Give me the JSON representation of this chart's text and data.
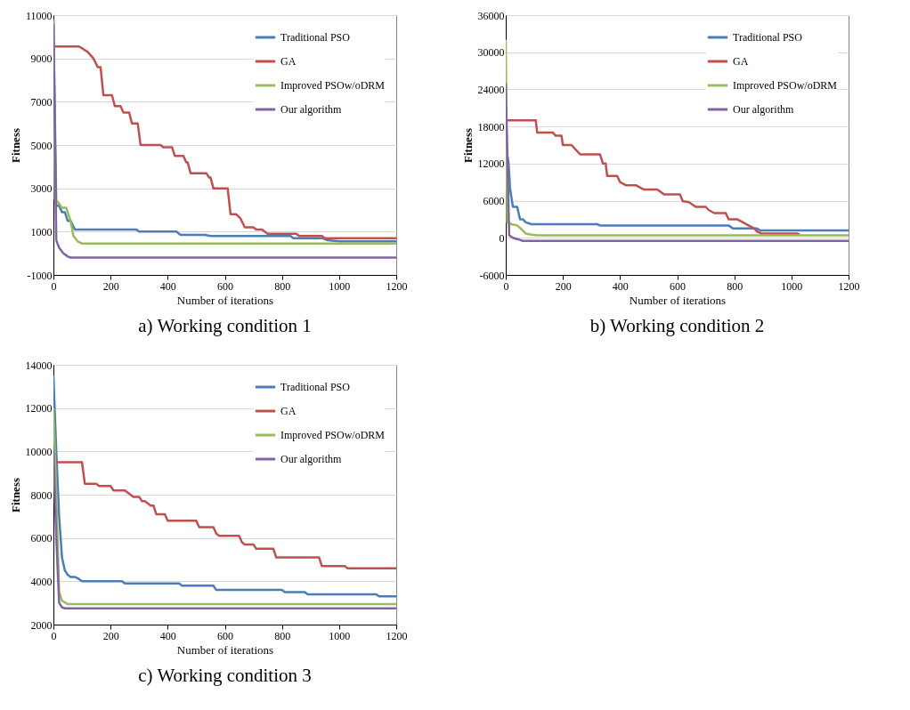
{
  "chart_data": [
    {
      "type": "line",
      "title": "a) Working condition 1",
      "xlabel": "Number of iterations",
      "ylabel": "Fitness",
      "xlim": [
        0,
        1200
      ],
      "xticks": [
        0,
        200,
        400,
        600,
        800,
        1000,
        1200
      ],
      "ylim": [
        -1000,
        11000
      ],
      "yticks": [
        -1000,
        1000,
        3000,
        5000,
        7000,
        9000,
        11000
      ],
      "grid": "y",
      "legend": "top right",
      "line_style": "solid",
      "series": [
        {
          "name": "Traditional PSO",
          "color": "#4a7ebb",
          "x": [
            0,
            10,
            20,
            30,
            40,
            50,
            60,
            75,
            290,
            300,
            430,
            445,
            530,
            550,
            830,
            840,
            940,
            960,
            1000,
            1200
          ],
          "values": [
            10800,
            2200,
            2200,
            1900,
            1900,
            1500,
            1500,
            1100,
            1100,
            1000,
            1000,
            850,
            850,
            800,
            800,
            700,
            700,
            600,
            550,
            550
          ]
        },
        {
          "name": "GA",
          "color": "#c0504d",
          "x": [
            0,
            90,
            120,
            140,
            155,
            165,
            175,
            205,
            215,
            235,
            245,
            265,
            275,
            295,
            305,
            375,
            385,
            415,
            425,
            455,
            465,
            470,
            480,
            535,
            545,
            550,
            560,
            610,
            620,
            640,
            655,
            670,
            700,
            710,
            730,
            750,
            850,
            860,
            940,
            950,
            1200
          ],
          "values": [
            9550,
            9550,
            9300,
            9000,
            8600,
            8600,
            7300,
            7300,
            6800,
            6800,
            6500,
            6500,
            6000,
            6000,
            5000,
            5000,
            4900,
            4900,
            4500,
            4500,
            4200,
            4200,
            3700,
            3700,
            3500,
            3500,
            3000,
            3000,
            1800,
            1800,
            1600,
            1200,
            1200,
            1100,
            1100,
            900,
            900,
            800,
            800,
            700,
            700
          ]
        },
        {
          "name": "Improved PSOw/oDRM",
          "color": "#9bbb59",
          "x": [
            0,
            5,
            20,
            30,
            45,
            60,
            70,
            85,
            100,
            1200
          ],
          "values": [
            10700,
            2500,
            2300,
            2100,
            2100,
            1500,
            800,
            550,
            450,
            450
          ]
        },
        {
          "name": "Our algorithm",
          "color": "#8064a2",
          "x": [
            0,
            10,
            20,
            35,
            50,
            60,
            1200
          ],
          "values": [
            10600,
            600,
            250,
            0,
            -150,
            -200,
            -200
          ]
        }
      ]
    },
    {
      "type": "line",
      "title": "b) Working condition 2",
      "xlabel": "Number of iterations",
      "ylabel": "Fitness",
      "xlim": [
        0,
        1200
      ],
      "xticks": [
        0,
        200,
        400,
        600,
        800,
        1000,
        1200
      ],
      "ylim": [
        -6000,
        36000
      ],
      "yticks": [
        -6000,
        0,
        6000,
        12000,
        18000,
        24000,
        30000,
        36000
      ],
      "grid": "y",
      "legend": "top right",
      "line_style": "solid",
      "series": [
        {
          "name": "Traditional PSO",
          "color": "#4a7ebb",
          "x": [
            0,
            10,
            15,
            25,
            40,
            50,
            60,
            70,
            90,
            320,
            330,
            780,
            795,
            880,
            890,
            1200
          ],
          "values": [
            15000,
            12000,
            8000,
            5000,
            5000,
            3000,
            3000,
            2500,
            2200,
            2200,
            2000,
            2000,
            1500,
            1500,
            1200,
            1200
          ]
        },
        {
          "name": "GA",
          "color": "#c0504d",
          "x": [
            0,
            105,
            110,
            165,
            175,
            195,
            200,
            230,
            260,
            330,
            340,
            350,
            355,
            390,
            400,
            420,
            455,
            475,
            485,
            530,
            540,
            555,
            610,
            620,
            640,
            665,
            700,
            710,
            730,
            770,
            780,
            810,
            830,
            850,
            870,
            880,
            895,
            1020,
            1030
          ],
          "values": [
            19000,
            19000,
            17000,
            17000,
            16500,
            16500,
            15000,
            15000,
            13500,
            13500,
            12000,
            12000,
            10000,
            10000,
            9000,
            8500,
            8500,
            8000,
            7800,
            7800,
            7500,
            7000,
            7000,
            5900,
            5800,
            5000,
            5000,
            4500,
            4000,
            4000,
            3000,
            3000,
            2500,
            2000,
            1500,
            1000,
            700,
            700,
            500
          ]
        },
        {
          "name": "Improved PSOw/oDRM",
          "color": "#9bbb59",
          "x": [
            0,
            5,
            20,
            40,
            55,
            70,
            90,
            110,
            1200
          ],
          "values": [
            32000,
            2500,
            2200,
            2000,
            1400,
            700,
            500,
            400,
            400
          ]
        },
        {
          "name": "Our algorithm",
          "color": "#8064a2",
          "x": [
            0,
            12,
            25,
            40,
            60,
            1200
          ],
          "values": [
            25000,
            400,
            0,
            -200,
            -500,
            -500
          ]
        }
      ]
    },
    {
      "type": "line",
      "title": "c) Working condition 3",
      "xlabel": "Number of iterations",
      "ylabel": "Fitness",
      "xlim": [
        0,
        1200
      ],
      "xticks": [
        0,
        200,
        400,
        600,
        800,
        1000,
        1200
      ],
      "ylim": [
        2000,
        14000
      ],
      "yticks": [
        2000,
        4000,
        6000,
        8000,
        10000,
        12000,
        14000
      ],
      "grid": "y",
      "legend": "top right",
      "line_style": "solid",
      "series": [
        {
          "name": "Traditional PSO",
          "color": "#4a7ebb",
          "x": [
            0,
            10,
            20,
            30,
            40,
            50,
            60,
            75,
            90,
            100,
            240,
            250,
            440,
            450,
            560,
            570,
            800,
            810,
            880,
            890,
            1130,
            1140,
            1200
          ],
          "values": [
            13500,
            10000,
            7000,
            5100,
            4500,
            4300,
            4200,
            4200,
            4100,
            4000,
            4000,
            3900,
            3900,
            3800,
            3800,
            3600,
            3600,
            3500,
            3500,
            3400,
            3400,
            3300,
            3300
          ]
        },
        {
          "name": "GA",
          "color": "#c0504d",
          "x": [
            0,
            100,
            110,
            150,
            160,
            200,
            210,
            250,
            280,
            300,
            310,
            320,
            340,
            350,
            360,
            390,
            400,
            500,
            510,
            560,
            570,
            580,
            650,
            660,
            670,
            700,
            710,
            770,
            780,
            930,
            940,
            1020,
            1030,
            1200
          ],
          "values": [
            9500,
            9500,
            8500,
            8500,
            8400,
            8400,
            8200,
            8200,
            7900,
            7900,
            7700,
            7700,
            7500,
            7500,
            7100,
            7100,
            6800,
            6800,
            6500,
            6500,
            6200,
            6100,
            6100,
            5800,
            5700,
            5700,
            5500,
            5500,
            5100,
            5100,
            4700,
            4700,
            4600,
            4600
          ]
        },
        {
          "name": "Improved PSOw/oDRM",
          "color": "#9bbb59",
          "x": [
            0,
            10,
            20,
            30,
            50,
            1200
          ],
          "values": [
            12000,
            8000,
            3500,
            3100,
            2950,
            2950
          ]
        },
        {
          "name": "Our algorithm",
          "color": "#8064a2",
          "x": [
            0,
            10,
            20,
            30,
            40,
            1200
          ],
          "values": [
            10000,
            6000,
            3000,
            2800,
            2750,
            2750
          ]
        }
      ]
    }
  ]
}
